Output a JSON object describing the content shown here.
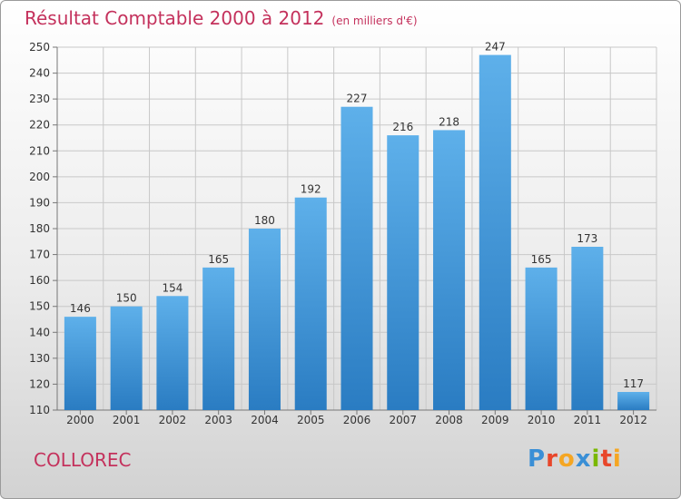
{
  "title": "Résultat Comptable 2000 à 2012",
  "unit_note": "(en milliers d'€)",
  "commune": "COLLOREC",
  "logo": {
    "text": "Proxiti",
    "letters": [
      {
        "ch": "P",
        "color": "#3a8fd6"
      },
      {
        "ch": "r",
        "color": "#e8462a"
      },
      {
        "ch": "o",
        "color": "#f5a623"
      },
      {
        "ch": "x",
        "color": "#3a8fd6"
      },
      {
        "ch": "i",
        "color": "#7ab800"
      },
      {
        "ch": "t",
        "color": "#e8462a"
      },
      {
        "ch": "i",
        "color": "#f5a623"
      }
    ]
  },
  "colors": {
    "bar_top": "#5eb0ea",
    "bar_bottom": "#2a7cc2",
    "accent": "#c4315c",
    "grid": "#c8c8c8"
  },
  "chart_data": {
    "type": "bar",
    "title": "Résultat Comptable 2000 à 2012",
    "xlabel": "",
    "ylabel": "",
    "categories": [
      "2000",
      "2001",
      "2002",
      "2003",
      "2004",
      "2005",
      "2006",
      "2007",
      "2008",
      "2009",
      "2010",
      "2011",
      "2012"
    ],
    "values": [
      146,
      150,
      154,
      165,
      180,
      192,
      227,
      216,
      218,
      247,
      165,
      173,
      117
    ],
    "ylim": [
      110,
      250
    ],
    "yticks": [
      110,
      120,
      130,
      140,
      150,
      160,
      170,
      180,
      190,
      200,
      210,
      220,
      230,
      240,
      250
    ],
    "grid": true
  }
}
